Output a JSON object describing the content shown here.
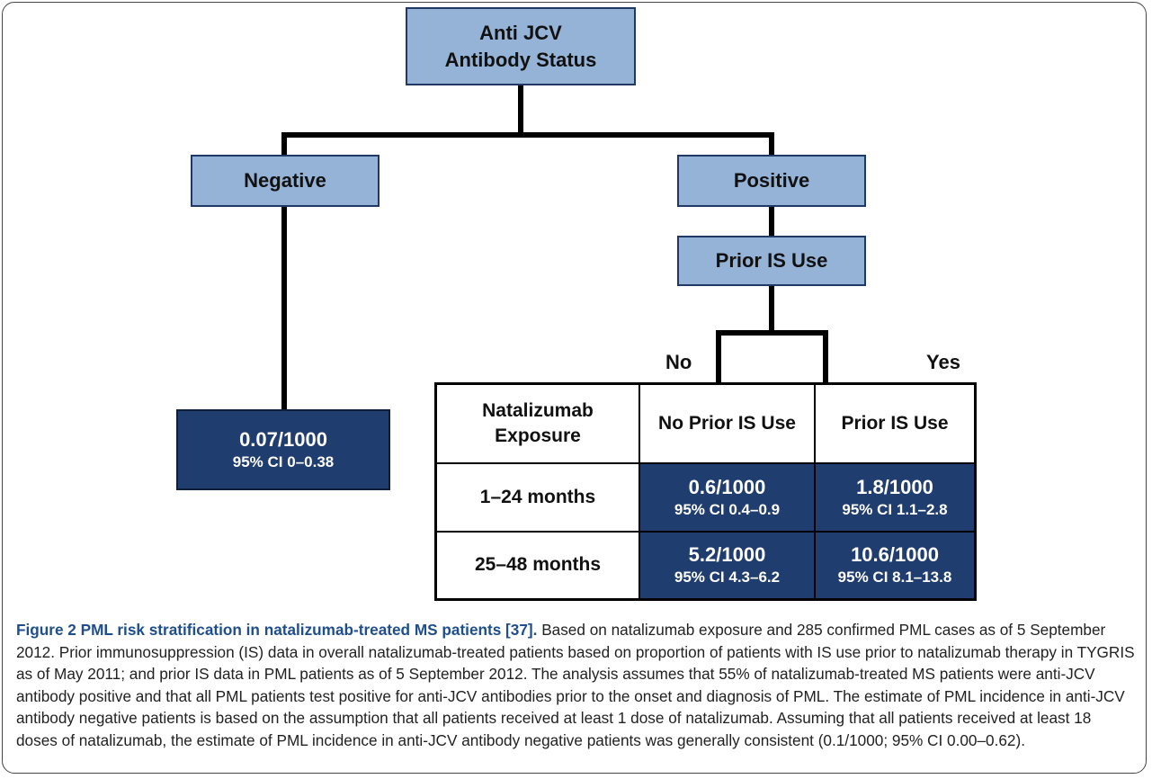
{
  "nodes": {
    "root": {
      "lines": [
        "Anti JCV",
        "Antibody Status"
      ]
    },
    "negative": "Negative",
    "positive": "Positive",
    "prior_is": "Prior IS Use",
    "no": "No",
    "yes": "Yes",
    "negative_result": {
      "rate": "0.07/1000",
      "ci": "95% CI 0–0.38"
    }
  },
  "table": {
    "header": [
      [
        "Natalizumab",
        "Exposure"
      ],
      "No Prior IS Use",
      "Prior IS Use"
    ],
    "rows": [
      {
        "label": "1–24 months",
        "cells": [
          {
            "rate": "0.6/1000",
            "ci": "95% CI 0.4–0.9"
          },
          {
            "rate": "1.8/1000",
            "ci": "95% CI 1.1–2.8"
          }
        ]
      },
      {
        "label": "25–48 months",
        "cells": [
          {
            "rate": "5.2/1000",
            "ci": "95% CI 4.3–6.2"
          },
          {
            "rate": "10.6/1000",
            "ci": "95% CI 8.1–13.8"
          }
        ]
      }
    ]
  },
  "caption": {
    "title": "Figure 2 PML risk stratification in natalizumab-treated MS patients [37].",
    "body": "Based on natalizumab exposure and 285 confirmed PML cases as of 5 September 2012. Prior immunosuppression (IS) data in overall natalizumab-treated patients based on proportion of patients with IS use prior to natalizumab therapy in TYGRIS as of May 2011; and prior IS data in PML patients as of 5 September 2012. The analysis assumes that 55% of natalizumab-treated MS patients were anti-JCV antibody positive and that all PML patients test positive for anti-JCV antibodies prior to the onset and diagnosis of PML. The estimate of PML incidence in anti-JCV antibody negative patients is based on the assumption that all patients received at least 1 dose of natalizumab. Assuming that all patients received at least 18 doses of natalizumab, the estimate of PML incidence in anti-JCV antibody negative patients was generally consistent (0.1/1000; 95% CI 0.00–0.62)."
  }
}
